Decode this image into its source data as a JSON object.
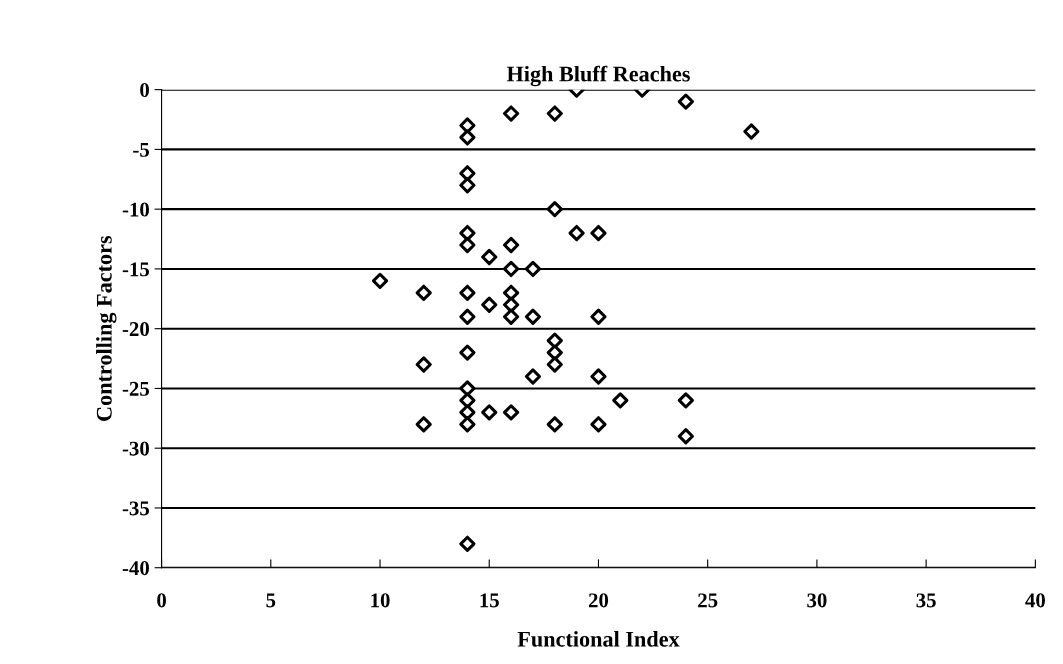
{
  "chart_data": {
    "type": "scatter",
    "title": "High Bluff Reaches",
    "xlabel": "Functional Index",
    "ylabel": "Controlling Factors",
    "x": [
      19,
      22,
      24,
      27,
      16,
      18,
      14,
      14,
      14,
      14,
      18,
      19,
      20,
      14,
      14,
      16,
      15,
      16,
      17,
      10,
      12,
      14,
      16,
      15,
      16,
      14,
      16,
      17,
      20,
      18,
      18,
      18,
      14,
      12,
      17,
      20,
      21,
      24,
      14,
      14,
      14,
      14,
      15,
      16,
      12,
      18,
      20,
      24,
      14
    ],
    "values": [
      0,
      0,
      -1,
      -3.5,
      -2,
      -2,
      -3,
      -4,
      -7,
      -8,
      -10,
      -12,
      -12,
      -12,
      -13,
      -13,
      -14,
      -15,
      -15,
      -16,
      -17,
      -17,
      -17,
      -18,
      -18,
      -19,
      -19,
      -19,
      -19,
      -21,
      -22,
      -23,
      -22,
      -23,
      -24,
      -24,
      -26,
      -26,
      -25,
      -26,
      -27,
      -28,
      -27,
      -27,
      -28,
      -28,
      -28,
      -29,
      -38
    ],
    "color": "#000000",
    "marker": "diamond",
    "xlim": [
      0,
      40
    ],
    "xticks": [
      0,
      5,
      10,
      15,
      20,
      25,
      30,
      35,
      40
    ],
    "ylim": [
      -40,
      0
    ],
    "yticks": [
      -40,
      -35,
      -30,
      -25,
      -20,
      -15,
      -10,
      -5,
      0
    ],
    "grid": "y",
    "legend": false
  }
}
